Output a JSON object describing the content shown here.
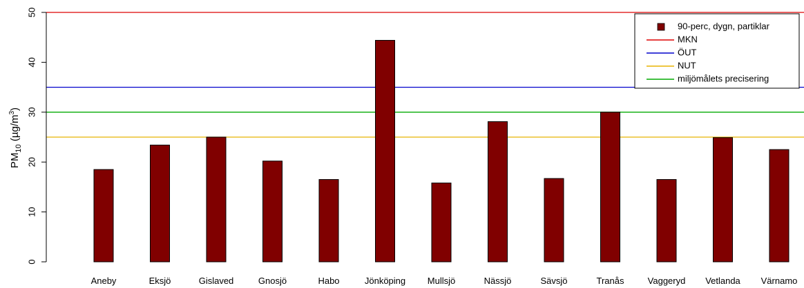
{
  "chart_data": {
    "type": "bar",
    "categories": [
      "Aneby",
      "Eksjö",
      "Gislaved",
      "Gnosjö",
      "Habo",
      "Jönköping",
      "Mullsjö",
      "Nässjö",
      "Sävsjö",
      "Tranås",
      "Vaggeryd",
      "Vetlanda",
      "Värnamo"
    ],
    "series": [
      {
        "name": "90-perc, dygn, partiklar",
        "values": [
          18.5,
          23.4,
          25.0,
          20.2,
          16.5,
          44.4,
          15.8,
          28.1,
          16.7,
          30.0,
          16.5,
          24.9,
          22.5
        ],
        "color": "#800000"
      }
    ],
    "reference_lines": [
      {
        "name": "MKN",
        "value": 50,
        "color": "#dd0000"
      },
      {
        "name": "ÖUT",
        "value": 35,
        "color": "#0000cc"
      },
      {
        "name": "NUT",
        "value": 25,
        "color": "#e8b400"
      },
      {
        "name": "miljömålets precisering",
        "value": 30,
        "color": "#00aa00"
      }
    ],
    "ylabel_main": "PM",
    "ylabel_sub": "10",
    "ylabel_unit_open": " (µg/m",
    "ylabel_unit_sup": "3",
    "ylabel_unit_close": ")",
    "ylim": [
      0,
      50
    ],
    "yticks": [
      0,
      10,
      20,
      30,
      40,
      50
    ],
    "grid": false,
    "legend_position": "top-right"
  }
}
